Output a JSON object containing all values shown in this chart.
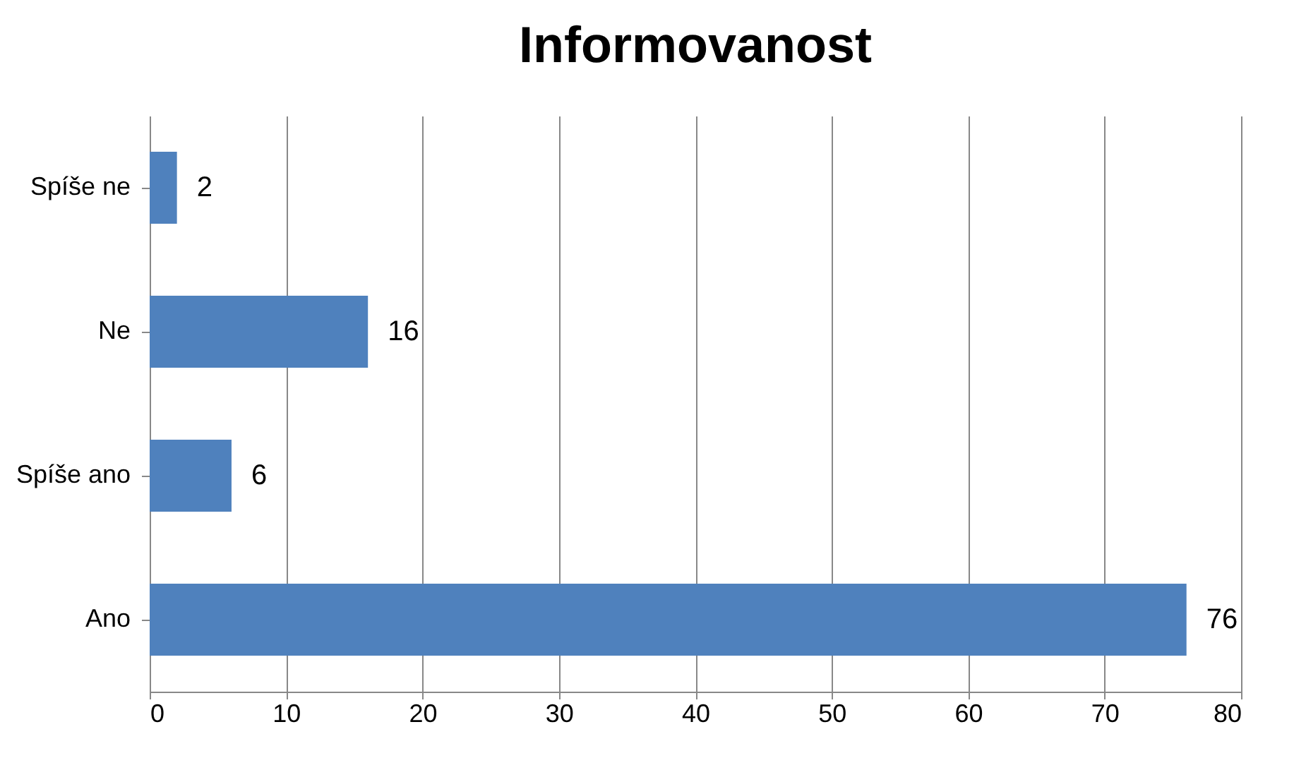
{
  "chart_data": {
    "type": "bar",
    "orientation": "horizontal",
    "title": "Informovanost",
    "categories": [
      "Spíše ne",
      "Ne",
      "Spíše ano",
      "Ano"
    ],
    "values": [
      2,
      16,
      6,
      76
    ],
    "color": "#4f81bd",
    "xlim": [
      0,
      80
    ],
    "xticks": [
      0,
      10,
      20,
      30,
      40,
      50,
      60,
      70,
      80
    ],
    "grid": "x",
    "data_labels": true
  }
}
